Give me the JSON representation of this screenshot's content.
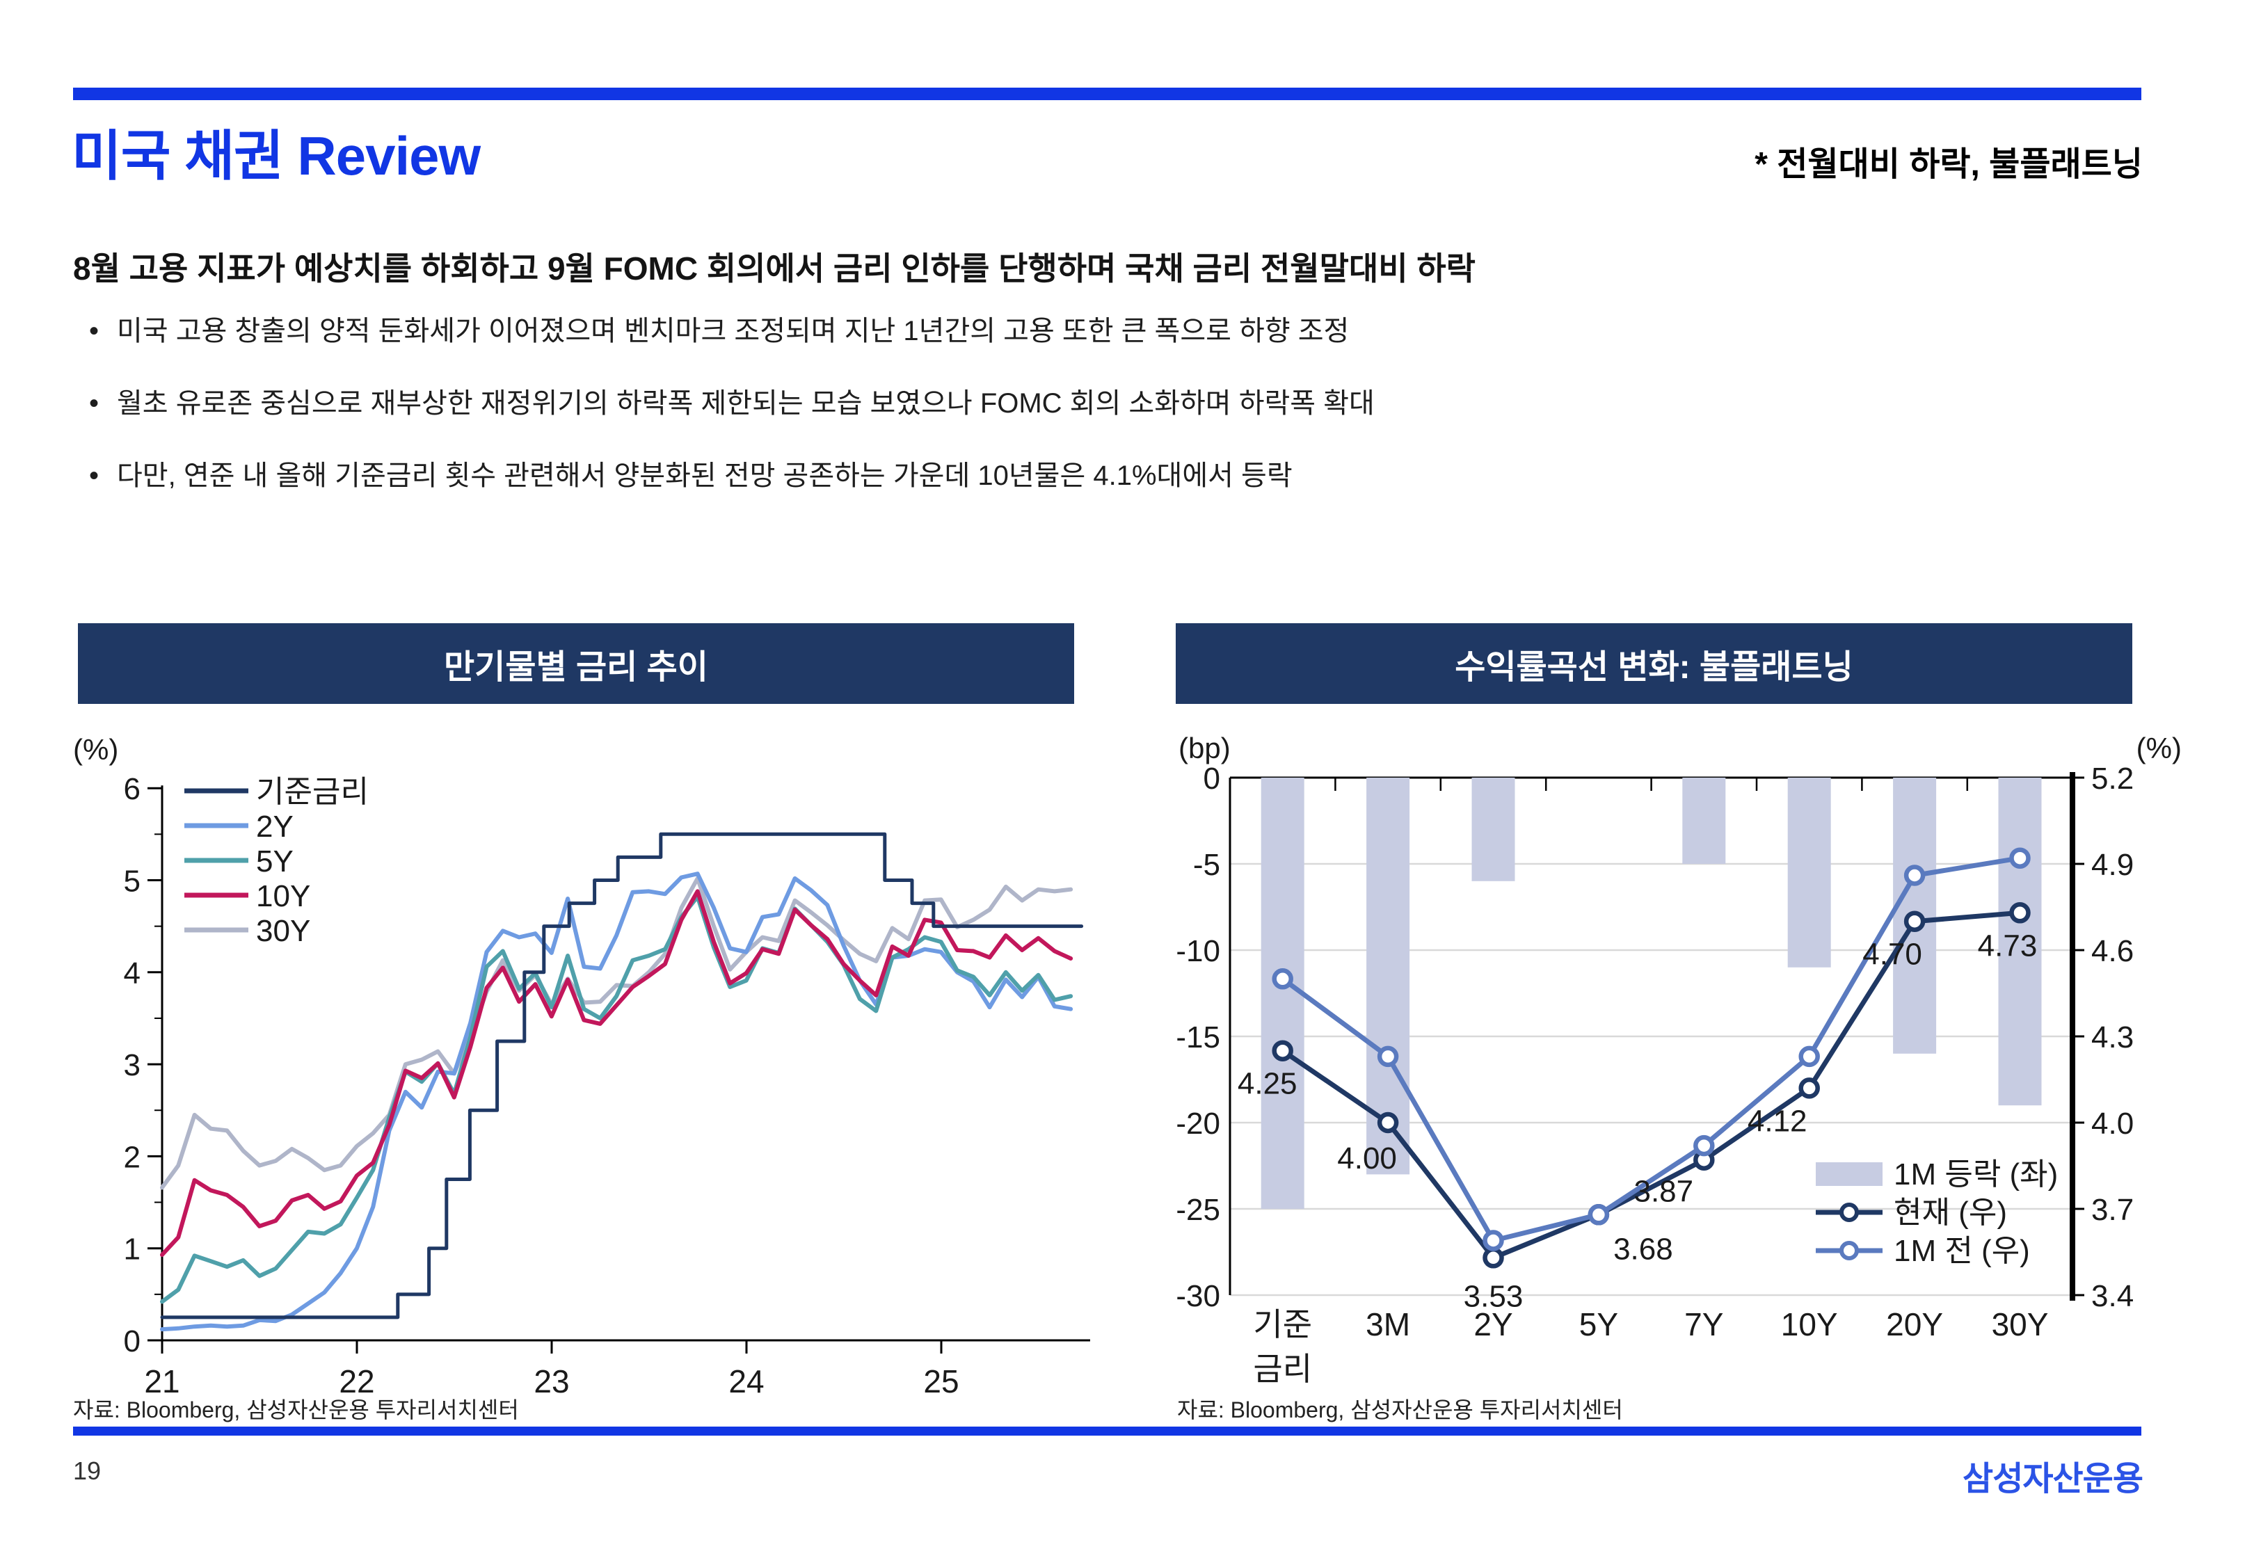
{
  "page": {
    "title": "미국 채권 Review",
    "title_note": "* 전월대비 하락, 불플래트닝",
    "headline": "8월 고용 지표가 예상치를 하회하고 9월 FOMC 회의에서 금리 인하를 단행하며 국채 금리 전월말대비 하락",
    "bullets": [
      "미국 고용 창출의 양적 둔화세가 이어졌으며 벤치마크 조정되며 지난 1년간의 고용 또한 큰 폭으로 하향 조정",
      "월초 유로존 중심으로 재부상한 재정위기의 하락폭 제한되는 모습 보였으나 FOMC 회의 소화하며 하락폭 확대",
      "다만, 연준 내 올해 기준금리 횟수 관련해서 양분화된 전망 공존하는 가운데 10년물은 4.1%대에서 등락"
    ],
    "page_number": "19",
    "logo": "삼성자산운용"
  },
  "colors": {
    "accent_blue": "#1136E4",
    "logo_blue": "#2B53E6",
    "banner_navy": "#1F3864",
    "grid_gray": "#D9D9D9",
    "bar_lavender": "#C7CCE2",
    "text_dark": "#1a1a1a"
  },
  "chart_data": [
    {
      "type": "line",
      "title": "만기물별 금리 추이",
      "unit": "(%)",
      "ylim": [
        0,
        6
      ],
      "yticks": [
        6,
        5,
        4,
        3,
        2,
        1,
        0
      ],
      "xticks": [
        21,
        22,
        23,
        24,
        25
      ],
      "xlim": [
        21,
        25.9
      ],
      "grid": false,
      "legend_position": "top-left",
      "source": "자료: Bloomberg, 삼성자산운용 투자리서치센터",
      "series": [
        {
          "name": "기준금리",
          "color": "#1F3864",
          "lw": 5,
          "z": 5,
          "step": true,
          "points": [
            [
              21.0,
              0.25
            ],
            [
              22.21,
              0.25
            ],
            [
              22.21,
              0.5
            ],
            [
              22.37,
              0.5
            ],
            [
              22.37,
              1.0
            ],
            [
              22.46,
              1.0
            ],
            [
              22.46,
              1.75
            ],
            [
              22.58,
              1.75
            ],
            [
              22.58,
              2.5
            ],
            [
              22.72,
              2.5
            ],
            [
              22.72,
              3.25
            ],
            [
              22.86,
              3.25
            ],
            [
              22.86,
              4.0
            ],
            [
              22.96,
              4.0
            ],
            [
              22.96,
              4.5
            ],
            [
              23.09,
              4.5
            ],
            [
              23.09,
              4.75
            ],
            [
              23.22,
              4.75
            ],
            [
              23.22,
              5.0
            ],
            [
              23.34,
              5.0
            ],
            [
              23.34,
              5.25
            ],
            [
              23.56,
              5.25
            ],
            [
              23.56,
              5.5
            ],
            [
              24.71,
              5.5
            ],
            [
              24.71,
              5.0
            ],
            [
              24.85,
              5.0
            ],
            [
              24.85,
              4.75
            ],
            [
              24.96,
              4.75
            ],
            [
              24.96,
              4.5
            ],
            [
              25.72,
              4.5
            ]
          ]
        },
        {
          "name": "2Y",
          "color": "#6E9BE2",
          "lw": 6,
          "z": 2,
          "x_start": 21,
          "x_step": 0.0833,
          "values": [
            0.12,
            0.13,
            0.15,
            0.16,
            0.15,
            0.16,
            0.22,
            0.21,
            0.28,
            0.4,
            0.52,
            0.73,
            1.0,
            1.45,
            2.28,
            2.7,
            2.53,
            2.92,
            2.9,
            3.45,
            4.22,
            4.45,
            4.38,
            4.42,
            4.21,
            4.8,
            4.06,
            4.04,
            4.4,
            4.87,
            4.88,
            4.85,
            5.03,
            5.07,
            4.7,
            4.26,
            4.22,
            4.6,
            4.63,
            5.02,
            4.89,
            4.73,
            4.29,
            3.91,
            3.65,
            4.16,
            4.18,
            4.25,
            4.22,
            4.0,
            3.9,
            3.62,
            3.92,
            3.73,
            3.95,
            3.63,
            3.6
          ]
        },
        {
          "name": "5Y",
          "color": "#4FA0AA",
          "lw": 6,
          "z": 3,
          "x_start": 21,
          "x_step": 0.0833,
          "values": [
            0.42,
            0.55,
            0.92,
            0.86,
            0.8,
            0.87,
            0.7,
            0.78,
            0.98,
            1.18,
            1.16,
            1.26,
            1.55,
            1.85,
            2.42,
            2.92,
            2.81,
            3.01,
            2.68,
            3.3,
            4.06,
            4.23,
            3.82,
            3.99,
            3.62,
            4.18,
            3.6,
            3.5,
            3.74,
            4.13,
            4.18,
            4.25,
            4.6,
            4.82,
            4.27,
            3.84,
            3.91,
            4.26,
            4.21,
            4.69,
            4.51,
            4.33,
            4.08,
            3.71,
            3.58,
            4.16,
            4.25,
            4.38,
            4.33,
            4.02,
            3.95,
            3.75,
            4.0,
            3.8,
            3.97,
            3.7,
            3.74
          ]
        },
        {
          "name": "10Y",
          "color": "#C2175B",
          "lw": 6,
          "z": 4,
          "x_start": 21,
          "x_step": 0.0833,
          "values": [
            0.93,
            1.12,
            1.74,
            1.63,
            1.58,
            1.45,
            1.24,
            1.3,
            1.52,
            1.58,
            1.43,
            1.51,
            1.79,
            1.93,
            2.34,
            2.93,
            2.85,
            3.01,
            2.64,
            3.19,
            3.83,
            4.05,
            3.68,
            3.87,
            3.52,
            3.92,
            3.48,
            3.44,
            3.64,
            3.84,
            3.96,
            4.09,
            4.57,
            4.88,
            4.33,
            3.88,
            3.99,
            4.25,
            4.2,
            4.68,
            4.51,
            4.36,
            4.09,
            3.91,
            3.75,
            4.28,
            4.18,
            4.57,
            4.54,
            4.24,
            4.23,
            4.16,
            4.4,
            4.24,
            4.37,
            4.23,
            4.15
          ]
        },
        {
          "name": "30Y",
          "color": "#AFB5C9",
          "lw": 6,
          "z": 1,
          "x_start": 21,
          "x_step": 0.0833,
          "values": [
            1.66,
            1.9,
            2.45,
            2.3,
            2.28,
            2.06,
            1.9,
            1.95,
            2.08,
            1.98,
            1.85,
            1.9,
            2.11,
            2.25,
            2.45,
            3.0,
            3.05,
            3.14,
            2.9,
            3.3,
            3.79,
            4.13,
            3.8,
            3.97,
            3.65,
            3.93,
            3.67,
            3.68,
            3.86,
            3.85,
            4.0,
            4.2,
            4.7,
            5.02,
            4.5,
            4.03,
            4.22,
            4.38,
            4.34,
            4.78,
            4.65,
            4.51,
            4.35,
            4.2,
            4.12,
            4.48,
            4.36,
            4.78,
            4.79,
            4.49,
            4.57,
            4.68,
            4.93,
            4.78,
            4.9,
            4.88,
            4.9
          ]
        }
      ]
    },
    {
      "type": "bar+line",
      "title": "수익률곡선 변화: 불플래트닝",
      "unit_left": "(bp)",
      "unit_right": "(%)",
      "categories": [
        "기준금리",
        "3M",
        "2Y",
        "5Y",
        "7Y",
        "10Y",
        "20Y",
        "30Y"
      ],
      "category_lines": [
        [
          "기준",
          "금리"
        ],
        [
          "3M"
        ],
        [
          "2Y"
        ],
        [
          "5Y"
        ],
        [
          "7Y"
        ],
        [
          "10Y"
        ],
        [
          "20Y"
        ],
        [
          "30Y"
        ]
      ],
      "bar_series": {
        "name": "1M 등락 (좌)",
        "color": "#C7CCE2",
        "axis": "left",
        "values_bp": [
          -25,
          -23,
          -6,
          0,
          -5,
          -11,
          -16,
          -19
        ]
      },
      "line_series": [
        {
          "name": "현재 (우)",
          "color": "#1F3864",
          "axis": "right",
          "values_pct": [
            4.25,
            4.0,
            3.53,
            3.68,
            3.87,
            4.12,
            4.7,
            4.73
          ]
        },
        {
          "name": "1M 전 (우)",
          "color": "#5A7ABF",
          "axis": "right",
          "values_pct": [
            4.5,
            4.23,
            3.59,
            3.68,
            3.92,
            4.23,
            4.86,
            4.92
          ]
        }
      ],
      "value_labels": [
        "4.25",
        "4.00",
        "3.53",
        "3.68",
        "3.87",
        "4.12",
        "4.70",
        "4.73"
      ],
      "ylim_left": [
        -30,
        0
      ],
      "yticks_left": [
        0,
        -5,
        -10,
        -15,
        -20,
        -25,
        -30
      ],
      "ylim_right": [
        3.4,
        5.2
      ],
      "yticks_right": [
        "5.2",
        "4.9",
        "4.6",
        "4.3",
        "4.0",
        "3.7",
        "3.4"
      ],
      "legend_position": "bottom-right",
      "source": "자료: Bloomberg, 삼성자산운용 투자리서치센터"
    }
  ]
}
